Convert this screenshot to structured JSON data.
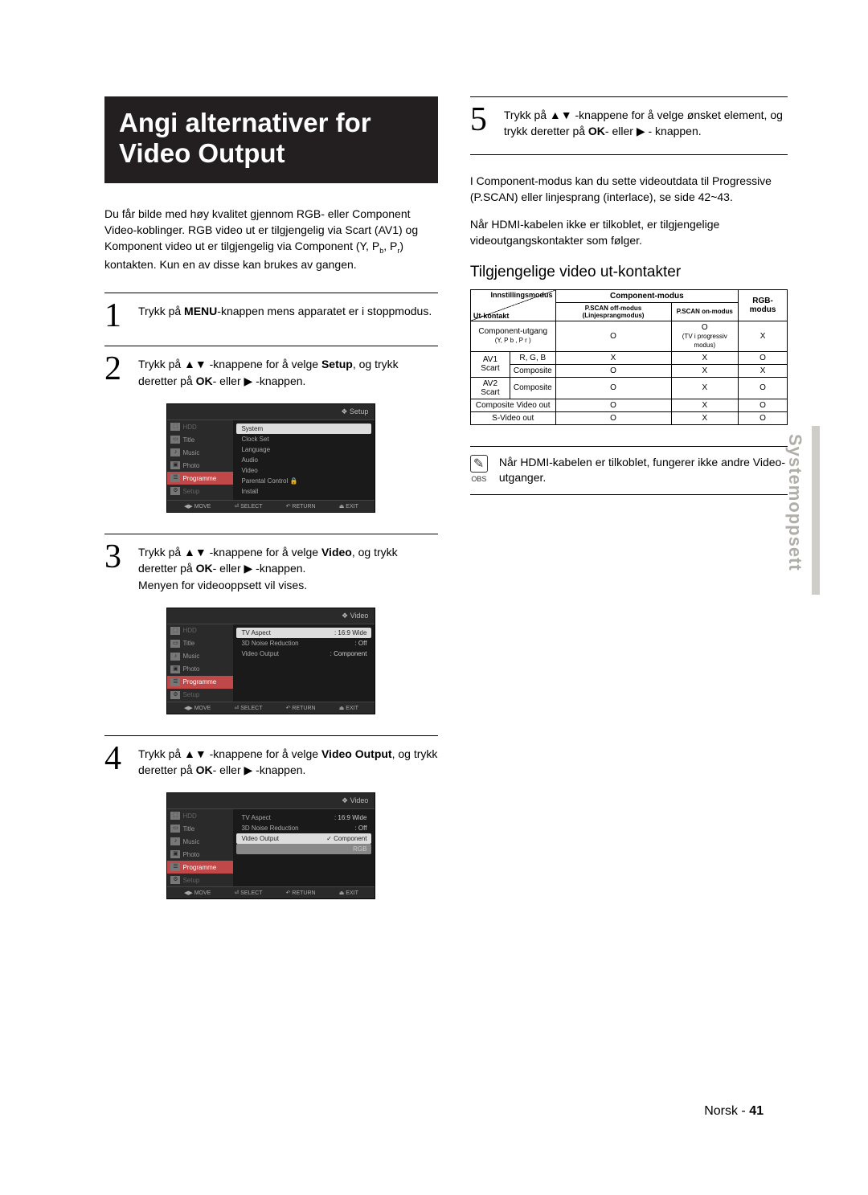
{
  "title": "Angi alternativer for Video Output",
  "intro_html": "Du får bilde med høy kvalitet gjennom RGB- eller Component Video-koblinger. RGB video ut er tilgjengelig via Scart (AV1) og Komponent video ut er tilgjengelig via Component (Y, P",
  "intro_sub": "b",
  "intro_mid": ", P",
  "intro_sub2": "r",
  "intro_end": ") kontakten. Kun en av disse kan brukes av gangen.",
  "steps": {
    "s1": {
      "num": "1",
      "a": "Trykk på ",
      "b": "MENU",
      "c": "-knappen mens apparatet er i stoppmodus."
    },
    "s2": {
      "num": "2",
      "a": "Trykk på ▲▼ -knappene for å velge ",
      "b": "Setup",
      "c": ", og trykk deretter på ",
      "d": "OK",
      "e": "- eller ▶ -knappen."
    },
    "s3": {
      "num": "3",
      "a": "Trykk på ▲▼ -knappene for å velge ",
      "b": "Video",
      "c": ", og trykk deretter på ",
      "d": "OK",
      "e": "- eller ▶ -knappen.",
      "f": "Menyen for videooppsett vil vises."
    },
    "s4": {
      "num": "4",
      "a": "Trykk på ▲▼ -knappene for å velge ",
      "b": "Video Output",
      "c": ", og trykk deretter på ",
      "d": "OK",
      "e": "- eller ▶ -knappen."
    },
    "s5": {
      "num": "5",
      "a": "Trykk på ▲▼ -knappene for å velge ønsket element, og trykk deretter på ",
      "d": "OK",
      "e": "- eller ▶ - knappen."
    }
  },
  "menu1": {
    "header": "❖  Setup",
    "side": [
      "HDD",
      "Title",
      "Music",
      "Photo",
      "Programme",
      "Setup"
    ],
    "rows": [
      {
        "l": "System",
        "v": "",
        "hl": true
      },
      {
        "l": "Clock Set",
        "v": ""
      },
      {
        "l": "Language",
        "v": ""
      },
      {
        "l": "Audio",
        "v": ""
      },
      {
        "l": "Video",
        "v": ""
      },
      {
        "l": "Parental Control  🔒",
        "v": ""
      },
      {
        "l": "Install",
        "v": ""
      }
    ],
    "footer": [
      "◀▶ MOVE",
      "⏎ SELECT",
      "↶ RETURN",
      "⏏ EXIT"
    ]
  },
  "menu2": {
    "header": "❖  Video",
    "side": [
      "HDD",
      "Title",
      "Music",
      "Photo",
      "Programme",
      "Setup"
    ],
    "rows": [
      {
        "l": "TV Aspect",
        "v": ": 16:9 Wide",
        "hl": true
      },
      {
        "l": "3D Noise Reduction",
        "v": ": Off"
      },
      {
        "l": "Video Output",
        "v": ": Component"
      }
    ],
    "footer": [
      "◀▶ MOVE",
      "⏎ SELECT",
      "↶ RETURN",
      "⏏ EXIT"
    ]
  },
  "menu3": {
    "header": "❖  Video",
    "side": [
      "HDD",
      "Title",
      "Music",
      "Photo",
      "Programme",
      "Setup"
    ],
    "rows": [
      {
        "l": "TV Aspect",
        "v": ": 16:9 Wide"
      },
      {
        "l": "3D Noise Reduction",
        "v": ": Off"
      },
      {
        "l": "Video Output",
        "v": "Component",
        "hl": true,
        "check": true
      },
      {
        "l": "",
        "v": "RGB",
        "sel": true
      }
    ],
    "footer": [
      "◀▶ MOVE",
      "⏎ SELECT",
      "↶ RETURN",
      "⏏ EXIT"
    ]
  },
  "right": {
    "p1": "I Component-modus kan du sette videoutdata til Progressive (P.SCAN) eller linjesprang (interlace), se side 42~43.",
    "p2": "Når HDMI-kabelen ikke er tilkoblet, er tilgjengelige videoutgangskontakter som følger.",
    "subhead": "Tilgjengelige video ut-kontakter",
    "obs_label": "OBS",
    "obs_text": "Når HDMI-kabelen er tilkoblet, fungerer ikke andre Video-utganger."
  },
  "table": {
    "diag_top": "Innstillingsmodus",
    "diag_bot": "Ut-kontakt",
    "h_comp": "Component-modus",
    "h_pscan_off": "P.SCAN off-modus (Linjesprangmodus)",
    "h_pscan_on": "P.SCAN on-modus",
    "h_rgb": "RGB-modus",
    "rows": [
      {
        "a": "Component-utgang",
        "a2": "(Y, P b , P r )",
        "c1": "O",
        "c2a": "O",
        "c2b": "(TV i progressiv modus)",
        "c3": "X"
      },
      {
        "a": "AV1 Scart",
        "b": "R, G, B",
        "c1": "X",
        "c2": "X",
        "c3": "O"
      },
      {
        "a_cont": true,
        "b": "Composite",
        "c1": "O",
        "c2": "X",
        "c3": "X"
      },
      {
        "a": "AV2 Scart",
        "b": "Composite",
        "c1": "O",
        "c2": "X",
        "c3": "O"
      },
      {
        "a": "Composite Video out",
        "span": true,
        "c1": "O",
        "c2": "X",
        "c3": "O"
      },
      {
        "a": "S-Video out",
        "span": true,
        "c1": "O",
        "c2": "X",
        "c3": "O"
      }
    ]
  },
  "sidetab": "Systemoppsett",
  "footer": {
    "lang": "Norsk",
    "sep": " - ",
    "page": "41"
  }
}
